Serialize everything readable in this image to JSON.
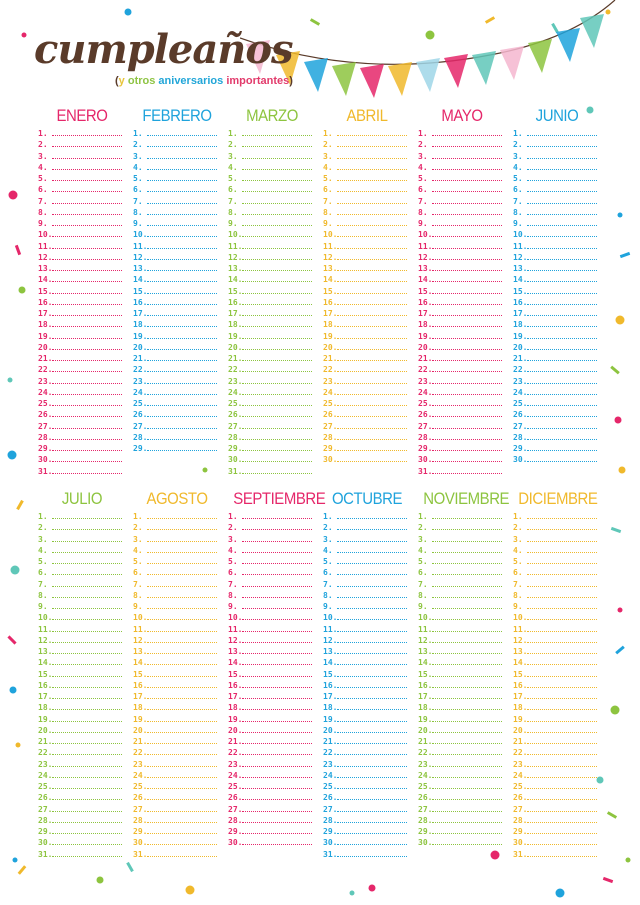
{
  "header": {
    "title": "cumpleaños",
    "subtitle_open": "(",
    "subtitle_y": "y",
    "subtitle_otros": "otros",
    "subtitle_aniversarios": "aniversarios",
    "subtitle_importantes": "importantes",
    "subtitle_close": ")"
  },
  "colors": {
    "pink": "#e5276a",
    "blue": "#1fa3dc",
    "green": "#8dc43f",
    "yellow": "#f0b92c",
    "brown": "#5a3b2a"
  },
  "months": [
    {
      "name": "Enero",
      "days": 31,
      "color": "#e5276a"
    },
    {
      "name": "Febrero",
      "days": 29,
      "color": "#1fa3dc"
    },
    {
      "name": "Marzo",
      "days": 31,
      "color": "#8dc43f"
    },
    {
      "name": "Abril",
      "days": 30,
      "color": "#f0b92c"
    },
    {
      "name": "Mayo",
      "days": 31,
      "color": "#e5276a"
    },
    {
      "name": "Junio",
      "days": 30,
      "color": "#1fa3dc"
    },
    {
      "name": "Julio",
      "days": 31,
      "color": "#8dc43f"
    },
    {
      "name": "Agosto",
      "days": 31,
      "color": "#f0b92c"
    },
    {
      "name": "Septiembre",
      "days": 30,
      "color": "#e5276a"
    },
    {
      "name": "Octubre",
      "days": 31,
      "color": "#1fa3dc"
    },
    {
      "name": "Noviembre",
      "days": 30,
      "color": "#8dc43f"
    },
    {
      "name": "Diciembre",
      "days": 31,
      "color": "#f0b92c"
    }
  ]
}
